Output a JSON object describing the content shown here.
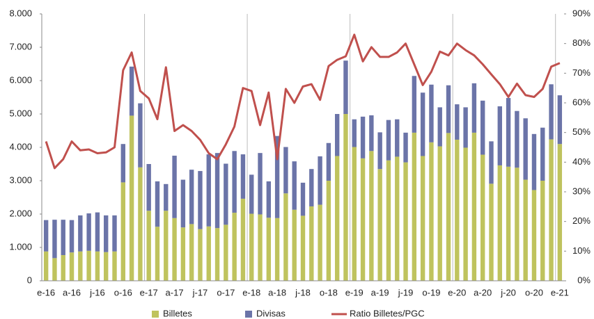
{
  "chart_data": {
    "type": "bar",
    "stacked": true,
    "categories": [
      "e-16",
      null,
      null,
      "a-16",
      null,
      null,
      "j-16",
      null,
      null,
      "o-16",
      null,
      null,
      "e-17",
      null,
      null,
      "a-17",
      null,
      null,
      "j-17",
      null,
      null,
      "o-17",
      null,
      null,
      "e-18",
      null,
      null,
      "a-18",
      null,
      null,
      "j-18",
      null,
      null,
      "o-18",
      null,
      null,
      "e-19",
      null,
      null,
      "a-19",
      null,
      null,
      "j-19",
      null,
      null,
      "o-19",
      null,
      null,
      "e-20",
      null,
      null,
      "a-20",
      null,
      null,
      "j-20",
      null,
      null,
      "o-20",
      null,
      null,
      "e-21"
    ],
    "series": [
      {
        "name": "Billetes",
        "color": "#bfc35e",
        "axis": "y",
        "values": [
          880,
          680,
          770,
          850,
          880,
          900,
          880,
          860,
          880,
          2950,
          4950,
          3400,
          2100,
          1620,
          2100,
          1880,
          1600,
          1700,
          1550,
          1630,
          1580,
          1680,
          2040,
          2460,
          2010,
          1990,
          1890,
          1880,
          2620,
          2130,
          1950,
          2230,
          2280,
          3000,
          3740,
          5000,
          4010,
          3670,
          3890,
          3350,
          3610,
          3720,
          3550,
          4440,
          3740,
          4150,
          4030,
          4430,
          4230,
          3990,
          4440,
          3780,
          2910,
          3460,
          3420,
          3390,
          3030,
          2720,
          3000,
          4240,
          4100
        ]
      },
      {
        "name": "Divisas",
        "color": "#6b74a8",
        "axis": "y",
        "values": [
          940,
          1150,
          1060,
          970,
          1080,
          1120,
          1170,
          1100,
          1080,
          1150,
          1470,
          1920,
          1400,
          1360,
          800,
          1870,
          1430,
          1630,
          1740,
          2160,
          2250,
          1830,
          1850,
          1330,
          1170,
          1840,
          1090,
          2460,
          1390,
          1450,
          990,
          1120,
          1450,
          1130,
          1260,
          1600,
          830,
          1250,
          1070,
          1100,
          1210,
          1120,
          890,
          1700,
          1900,
          1730,
          1170,
          1430,
          1060,
          1210,
          1480,
          1620,
          1270,
          1770,
          2060,
          1700,
          1840,
          1680,
          1590,
          1650,
          1460
        ]
      },
      {
        "name": "Ratio Billetes/PGC",
        "color": "#c0504d",
        "axis": "y2",
        "type": "line",
        "values": [
          47,
          38,
          41,
          47,
          44,
          44.3,
          43,
          43.3,
          45,
          71,
          77,
          64,
          61.5,
          54.5,
          72,
          50.5,
          52.5,
          50.5,
          47.5,
          43,
          41,
          46,
          52,
          65,
          64,
          52.5,
          63.5,
          41,
          64.7,
          60,
          65.5,
          66.3,
          61,
          72.4,
          74.5,
          75.7,
          83,
          74,
          78.8,
          75.5,
          75.5,
          77,
          80,
          73,
          66,
          70.5,
          77.3,
          76,
          80,
          77.8,
          76,
          73,
          69.6,
          66.3,
          62,
          66.5,
          62.6,
          62,
          64.7,
          72.2,
          73.4
        ]
      }
    ],
    "ylim": [
      0,
      8000
    ],
    "yticks": [
      0,
      {
        "value": 1000,
        "label": "1.000"
      },
      {
        "value": 2000,
        "label": "2.000"
      },
      {
        "value": 3000,
        "label": "3.000"
      },
      {
        "value": 4000,
        "label": "4.000"
      },
      {
        "value": 5000,
        "label": "5.000"
      },
      {
        "value": 6000,
        "label": "6.000"
      },
      {
        "value": 7000,
        "label": "7.000"
      },
      {
        "value": 8000,
        "label": "8.000"
      }
    ],
    "y2lim": [
      0,
      90
    ],
    "y2ticks": [
      {
        "value": 0,
        "label": "0%"
      },
      {
        "value": 10,
        "label": "10%"
      },
      {
        "value": 20,
        "label": "20%"
      },
      {
        "value": 30,
        "label": "30%"
      },
      {
        "value": 40,
        "label": "40%"
      },
      {
        "value": 50,
        "label": "50%"
      },
      {
        "value": 60,
        "label": "60%"
      },
      {
        "value": 70,
        "label": "70%"
      },
      {
        "value": 80,
        "label": "80%"
      },
      {
        "value": 90,
        "label": "90%"
      }
    ],
    "grid": false,
    "legend": "bottom"
  }
}
